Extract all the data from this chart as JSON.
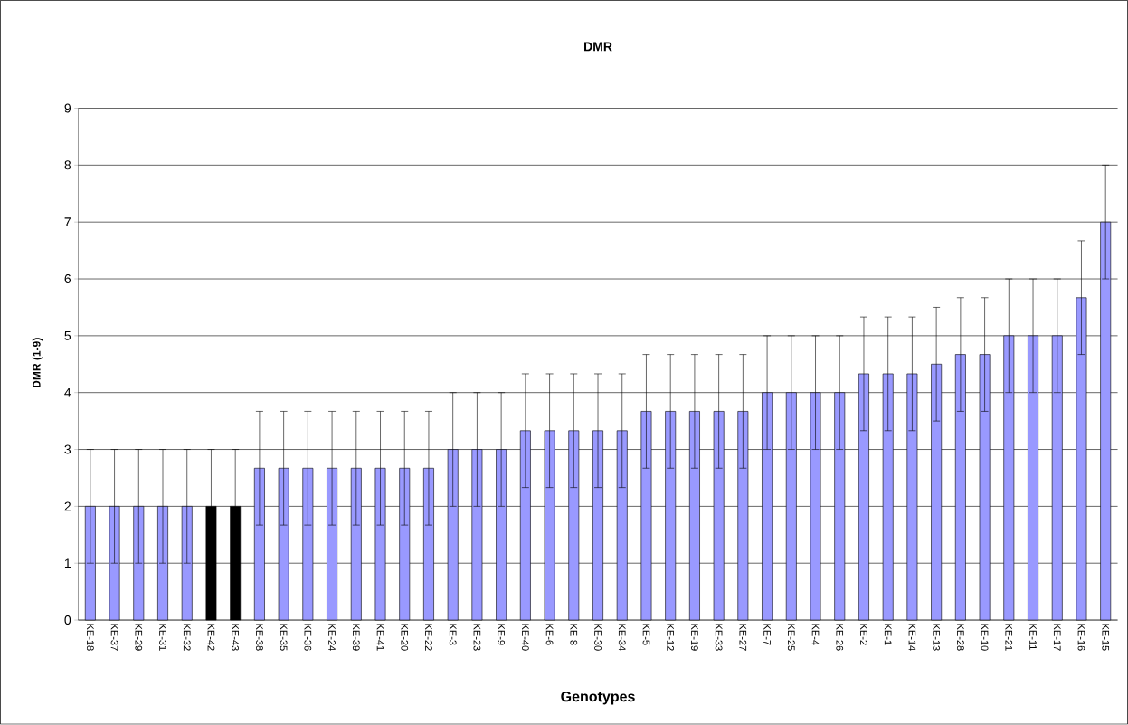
{
  "chart_data": {
    "type": "bar",
    "title": "DMR",
    "xlabel": "Genotypes",
    "ylabel": "DMR (1-9)",
    "categories": [
      "KE-18",
      "KE-37",
      "KE-29",
      "KE-31",
      "KE-32",
      "KE-42",
      "KE-43",
      "KE-38",
      "KE-35",
      "KE-36",
      "KE-24",
      "KE-39",
      "KE-41",
      "KE-20",
      "KE-22",
      "KE-3",
      "KE-23",
      "KE-9",
      "KE-40",
      "KE-6",
      "KE-8",
      "KE-30",
      "KE-34",
      "KE-5",
      "KE-12",
      "KE-19",
      "KE-33",
      "KE-27",
      "KE-7",
      "KE-25",
      "KE-4",
      "KE-26",
      "KE-2",
      "KE-1",
      "KE-14",
      "KE-13",
      "KE-28",
      "KE-10",
      "KE-21",
      "KE-11",
      "KE-17",
      "KE-16",
      "KE-15"
    ],
    "values": [
      2,
      2,
      2,
      2,
      2,
      2,
      2,
      2.67,
      2.67,
      2.67,
      2.67,
      2.67,
      2.67,
      2.67,
      2.67,
      3,
      3,
      3,
      3.33,
      3.33,
      3.33,
      3.33,
      3.33,
      3.67,
      3.67,
      3.67,
      3.67,
      3.67,
      4,
      4,
      4,
      4,
      4.33,
      4.33,
      4.33,
      4.5,
      4.67,
      4.67,
      5,
      5,
      5,
      5.67,
      7
    ],
    "errors": [
      1,
      1,
      1,
      1,
      1,
      1,
      1,
      1,
      1,
      1,
      1,
      1,
      1,
      1,
      1,
      1,
      1,
      1,
      1,
      1,
      1,
      1,
      1,
      1,
      1,
      1,
      1,
      1,
      1,
      1,
      1,
      1,
      1,
      1,
      1,
      1,
      1,
      1,
      1,
      1,
      1,
      1,
      1
    ],
    "colors": [
      "#9999ff",
      "#9999ff",
      "#9999ff",
      "#9999ff",
      "#9999ff",
      "#000000",
      "#000000",
      "#9999ff",
      "#9999ff",
      "#9999ff",
      "#9999ff",
      "#9999ff",
      "#9999ff",
      "#9999ff",
      "#9999ff",
      "#9999ff",
      "#9999ff",
      "#9999ff",
      "#9999ff",
      "#9999ff",
      "#9999ff",
      "#9999ff",
      "#9999ff",
      "#9999ff",
      "#9999ff",
      "#9999ff",
      "#9999ff",
      "#9999ff",
      "#9999ff",
      "#9999ff",
      "#9999ff",
      "#9999ff",
      "#9999ff",
      "#9999ff",
      "#9999ff",
      "#9999ff",
      "#9999ff",
      "#9999ff",
      "#9999ff",
      "#9999ff",
      "#9999ff",
      "#9999ff",
      "#9999ff"
    ],
    "ylim": [
      0,
      9
    ],
    "yticks": [
      0,
      1,
      2,
      3,
      4,
      5,
      6,
      7,
      8,
      9
    ],
    "grid": "y"
  }
}
